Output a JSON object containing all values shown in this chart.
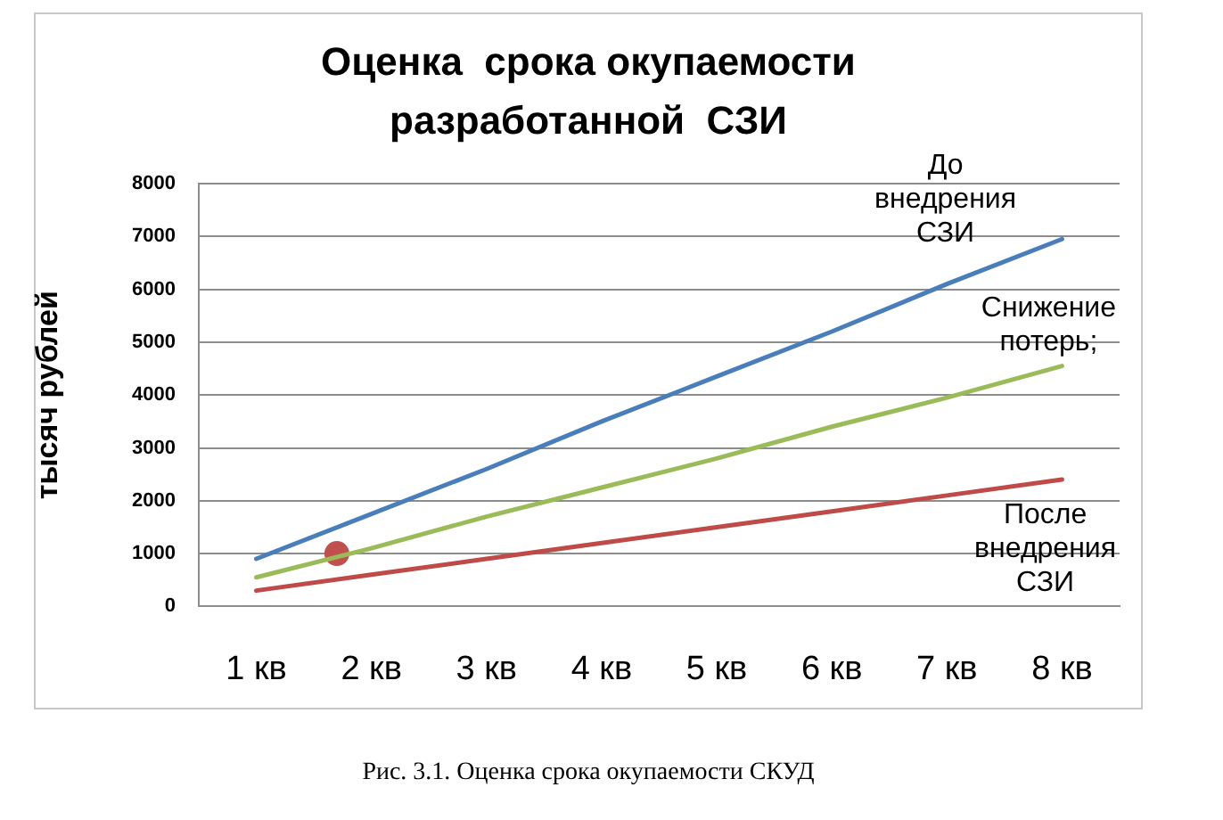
{
  "chart_data": {
    "type": "line",
    "title": "Оценка  срока окупаемости\nразработанной  СЗИ",
    "ylabel": "тысяч рублей",
    "annotations": [
      "Рис. 3.1. Оценка срока окупаемости СКУД"
    ],
    "x": [
      1,
      2,
      3,
      4,
      5,
      6,
      7,
      8
    ],
    "xlim": [
      0.5,
      8.5
    ],
    "xticks": [
      {
        "value": 1,
        "label": "1 кв"
      },
      {
        "value": 2,
        "label": "2 кв"
      },
      {
        "value": 3,
        "label": "3 кв"
      },
      {
        "value": 4,
        "label": "4 кв"
      },
      {
        "value": 5,
        "label": "5 кв"
      },
      {
        "value": 6,
        "label": "6 кв"
      },
      {
        "value": 7,
        "label": "7 кв"
      },
      {
        "value": 8,
        "label": "8 кв"
      }
    ],
    "ylim": [
      0,
      8000
    ],
    "yticks": [
      0,
      1000,
      2000,
      3000,
      4000,
      5000,
      6000,
      7000,
      8000
    ],
    "grid": "y",
    "legend": false,
    "series": [
      {
        "name": "До внедрения СЗИ",
        "color": "#4a7ebb",
        "values": [
          900,
          1750,
          2600,
          3500,
          4350,
          5200,
          6100,
          6950
        ]
      },
      {
        "name": "Снижение потерь;",
        "color": "#9bbb59",
        "values": [
          550,
          1100,
          1700,
          2250,
          2800,
          3400,
          3950,
          4550
        ]
      },
      {
        "name": "После внедрения СЗИ",
        "color": "#be4b48",
        "values": [
          300,
          600,
          900,
          1200,
          1500,
          1800,
          2100,
          2400
        ]
      },
      {
        "type": "scatter",
        "marker": "circle",
        "color": "#c0504d",
        "x": [
          1.7
        ],
        "values": [
          1000
        ]
      }
    ]
  }
}
